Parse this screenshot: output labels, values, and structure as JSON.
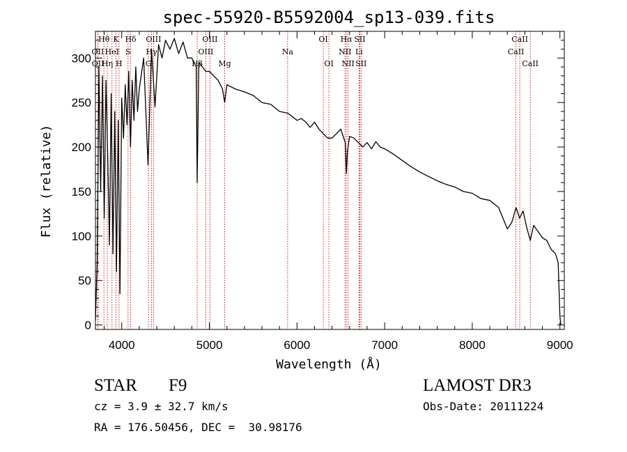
{
  "chart_data": {
    "type": "line",
    "title": "spec-55920-B5592004_sp13-039.fits",
    "xlabel": "Wavelength (Å)",
    "ylabel": "Flux (relative)",
    "xlim": [
      3700,
      9050
    ],
    "ylim": [
      -5,
      330
    ],
    "xticks": [
      4000,
      5000,
      6000,
      7000,
      8000,
      9000
    ],
    "yticks": [
      0,
      50,
      100,
      150,
      200,
      250,
      300
    ],
    "series": [
      {
        "name": "flux",
        "x": [
          3700,
          3720,
          3740,
          3760,
          3780,
          3800,
          3820,
          3840,
          3860,
          3880,
          3900,
          3920,
          3940,
          3960,
          3980,
          4000,
          4020,
          4040,
          4060,
          4080,
          4100,
          4120,
          4140,
          4160,
          4180,
          4200,
          4250,
          4300,
          4340,
          4380,
          4420,
          4460,
          4500,
          4550,
          4600,
          4650,
          4700,
          4750,
          4800,
          4850,
          4861,
          4880,
          4920,
          4960,
          5000,
          5050,
          5100,
          5150,
          5175,
          5200,
          5300,
          5400,
          5500,
          5600,
          5700,
          5800,
          5893,
          5950,
          6000,
          6050,
          6100,
          6150,
          6200,
          6250,
          6300,
          6350,
          6400,
          6450,
          6500,
          6550,
          6563,
          6575,
          6600,
          6650,
          6700,
          6750,
          6800,
          6850,
          6900,
          6950,
          7000,
          7100,
          7200,
          7300,
          7400,
          7500,
          7600,
          7700,
          7800,
          7900,
          8000,
          8100,
          8200,
          8300,
          8400,
          8450,
          8500,
          8540,
          8580,
          8620,
          8662,
          8700,
          8750,
          8800,
          8850,
          8900,
          8950,
          8980,
          9000,
          9010
        ],
        "y": [
          5,
          70,
          290,
          150,
          280,
          120,
          275,
          190,
          90,
          260,
          80,
          240,
          60,
          230,
          35,
          255,
          210,
          270,
          225,
          285,
          200,
          275,
          230,
          290,
          240,
          265,
          300,
          180,
          310,
          245,
          315,
          300,
          320,
          310,
          322,
          305,
          318,
          300,
          300,
          290,
          160,
          295,
          290,
          285,
          285,
          280,
          275,
          265,
          250,
          270,
          265,
          262,
          258,
          250,
          248,
          240,
          238,
          234,
          230,
          232,
          228,
          222,
          228,
          220,
          215,
          210,
          210,
          215,
          220,
          205,
          170,
          195,
          212,
          210,
          205,
          200,
          205,
          198,
          206,
          200,
          198,
          192,
          185,
          178,
          172,
          167,
          162,
          158,
          155,
          150,
          148,
          142,
          140,
          132,
          108,
          115,
          132,
          120,
          128,
          110,
          95,
          112,
          105,
          98,
          95,
          85,
          80,
          70,
          10,
          0
        ]
      }
    ],
    "lines": [
      {
        "label": "Hθ",
        "x": 3797,
        "row": 0
      },
      {
        "label": "K",
        "x": 3934,
        "row": 0
      },
      {
        "label": "Hδ",
        "x": 4102,
        "row": 0
      },
      {
        "label": "OIII",
        "x": 4363,
        "row": 0
      },
      {
        "label": "OIII",
        "x": 5007,
        "row": 0
      },
      {
        "label": "OI",
        "x": 6300,
        "row": 0
      },
      {
        "label": "Hα",
        "x": 6563,
        "row": 0
      },
      {
        "label": "SII",
        "x": 6717,
        "row": 0
      },
      {
        "label": "CaII",
        "x": 8542,
        "row": 0
      },
      {
        "label": "OII",
        "x": 3727,
        "row": 1
      },
      {
        "label": "HeI",
        "x": 3889,
        "row": 1
      },
      {
        "label": "S",
        "x": 4072,
        "row": 1
      },
      {
        "label": "Hγ",
        "x": 4340,
        "row": 1
      },
      {
        "label": "OIII",
        "x": 4959,
        "row": 1
      },
      {
        "label": "Na",
        "x": 5893,
        "row": 1
      },
      {
        "label": "NII",
        "x": 6548,
        "row": 1
      },
      {
        "label": "Li",
        "x": 6708,
        "row": 1
      },
      {
        "label": "CaII",
        "x": 8498,
        "row": 1
      },
      {
        "label": "OII",
        "x": 3729,
        "row": 2
      },
      {
        "label": "Hη",
        "x": 3835,
        "row": 2
      },
      {
        "label": "H",
        "x": 3969,
        "row": 2
      },
      {
        "label": "G",
        "x": 4305,
        "row": 2
      },
      {
        "label": "Hβ",
        "x": 4861,
        "row": 2
      },
      {
        "label": "Mg",
        "x": 5175,
        "row": 2
      },
      {
        "label": "OI",
        "x": 6364,
        "row": 2
      },
      {
        "label": "NII",
        "x": 6583,
        "row": 2
      },
      {
        "label": "SII",
        "x": 6731,
        "row": 2
      },
      {
        "label": "CaII",
        "x": 8662,
        "row": 2
      }
    ]
  },
  "info": {
    "object_class": "STAR",
    "subclass": "F9",
    "cz": "cz = 3.9 ± 32.7 km/s",
    "coords": "RA = 176.50456, DEC =  30.98176",
    "survey": "LAMOST DR3",
    "obs_date": "Obs-Date: 20111224"
  },
  "colors": {
    "spectrum": "#000000",
    "line_marker": "#cc0000",
    "axes": "#000000"
  }
}
